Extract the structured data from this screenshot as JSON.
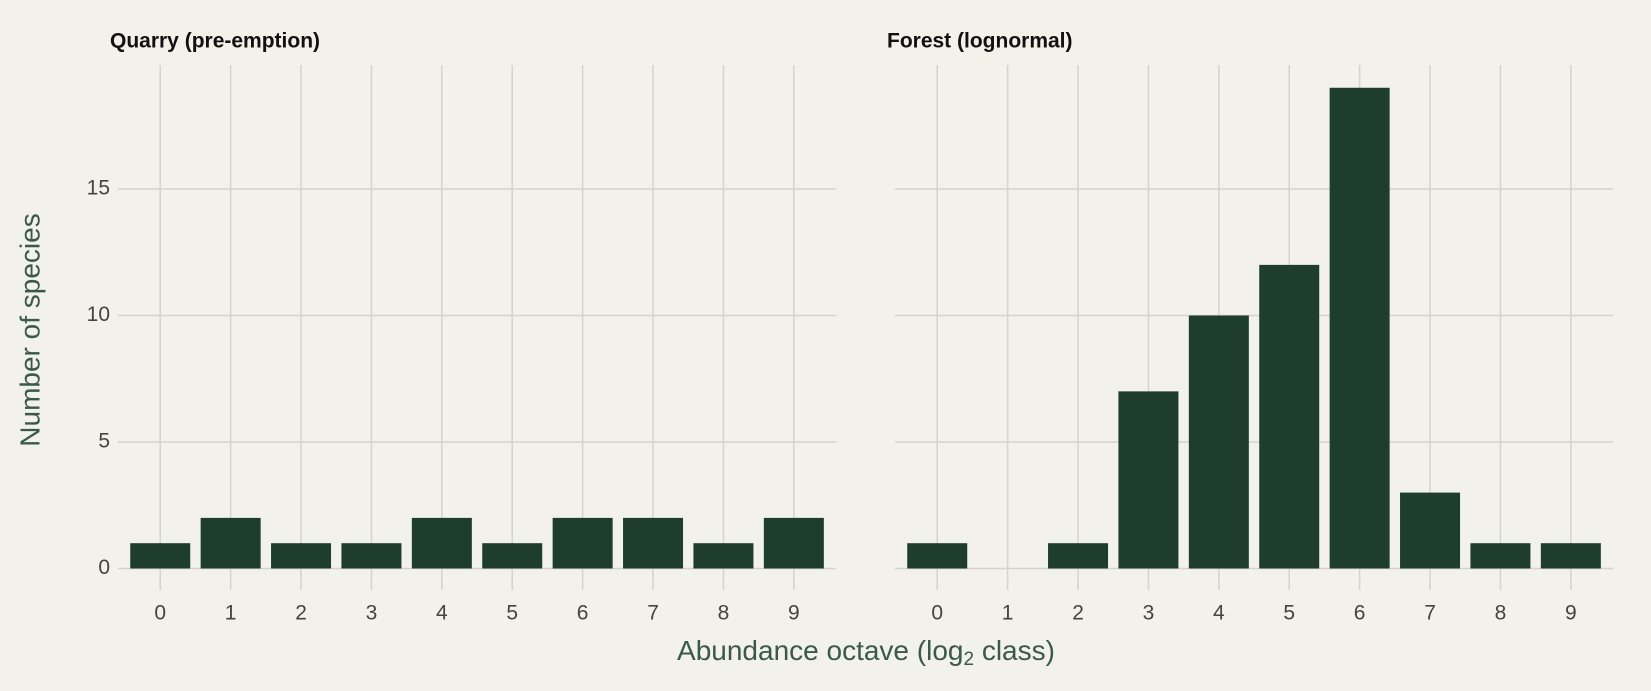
{
  "chart_data": [
    {
      "type": "bar",
      "title": "Quarry (pre-emption)",
      "categories": [
        "0",
        "1",
        "2",
        "3",
        "4",
        "5",
        "6",
        "7",
        "8",
        "9"
      ],
      "values": [
        1,
        2,
        1,
        1,
        2,
        1,
        2,
        2,
        1,
        2
      ],
      "color": "#1f3d2b",
      "ylim": [
        -0.85,
        19.9
      ],
      "yticks": [
        0,
        5,
        10,
        15
      ],
      "grid": true
    },
    {
      "type": "bar",
      "title": "Forest (lognormal)",
      "categories": [
        "0",
        "1",
        "2",
        "3",
        "4",
        "5",
        "6",
        "7",
        "8",
        "9"
      ],
      "values": [
        1,
        0,
        1,
        7,
        10,
        12,
        19,
        3,
        1,
        1
      ],
      "color": "#1f3d2b",
      "ylim": [
        -0.85,
        19.9
      ],
      "yticks": [
        0,
        5,
        10,
        15
      ],
      "grid": true
    }
  ],
  "ylabel": "Number of species",
  "xlabel": [
    "Abundance octave (log",
    "2",
    " class)"
  ]
}
